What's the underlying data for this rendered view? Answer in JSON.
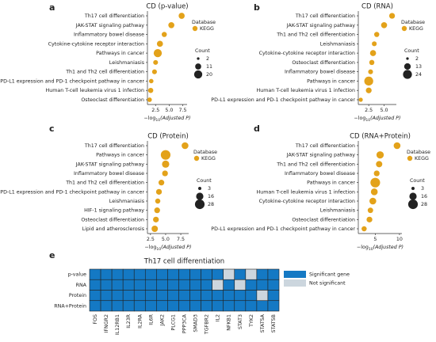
{
  "chart_data": [
    {
      "type": "dot",
      "panel": "a",
      "title": "CD (p-value)",
      "categories": [
        "Th17 cell differentiation",
        "JAK-STAT signaling pathway",
        "Inflammatory bowel disease",
        "Cytokine-cytokine receptor interaction",
        "Pathways in cancer",
        "Leishmaniasis",
        "Th1 and Th2 cell differentiation",
        "PD-L1 expression and PD-1 checkpoint pathway in cancer",
        "Human T-cell leukemia virus 1 infection",
        "Osteoclast differentiation"
      ],
      "series": [
        {
          "name": "KEGG",
          "color": "#e3a21a",
          "values": [
            7.3,
            5.4,
            4.1,
            3.3,
            2.9,
            2.5,
            2.3,
            1.7,
            1.6,
            1.4
          ],
          "sizes": [
            11,
            11,
            8,
            11,
            20,
            7,
            7,
            6,
            8,
            6
          ]
        }
      ],
      "legend_title": "Database",
      "size_legend": {
        "title": "Count",
        "values": [
          2,
          11,
          20
        ]
      },
      "xlim": [
        1,
        8.3
      ],
      "xticks": [
        2.5,
        {
          "value": 5,
          "label": "5.0"
        },
        7.5
      ],
      "xlabel": {
        "prefix": "−log",
        "sub": "10",
        "rest": "(Adjusted P)"
      }
    },
    {
      "type": "dot",
      "panel": "b",
      "title": "CD (RNA)",
      "categories": [
        "Th17 cell differentiation",
        "JAK-STAT signaling pathway",
        "Th1 and Th2 cell differentiation",
        "Leishmaniasis",
        "Cytokine-cytokine receptor interaction",
        "Osteoclast differentiation",
        "Inflammatory bowel disease",
        "Pathways in cancer",
        "Human T-cell leukemia virus 1 infection",
        "PD-L1 expression and PD-1 checkpoint pathway in cancer"
      ],
      "series": [
        {
          "name": "KEGG",
          "color": "#e3a21a",
          "values": [
            6.3,
            5.0,
            3.8,
            3.4,
            3.2,
            3.0,
            2.8,
            2.5,
            2.5,
            1.2
          ],
          "sizes": [
            10,
            11,
            8,
            7,
            11,
            8,
            7,
            24,
            10,
            5
          ]
        }
      ],
      "legend_title": "Database",
      "size_legend": {
        "title": "Count",
        "values": [
          2,
          13,
          24
        ]
      },
      "xlim": [
        0.8,
        7
      ],
      "xticks": [
        2.5,
        {
          "value": 5,
          "label": "5.0"
        }
      ],
      "xlabel": {
        "prefix": "−log",
        "sub": "10",
        "rest": "(Adjusted P)"
      }
    },
    {
      "type": "dot",
      "panel": "c",
      "title": "CD (Protein)",
      "categories": [
        "Th17 cell differentiation",
        "Pathways in cancer",
        "JAK-STAT signaling pathway",
        "Inflammatory bowel disease",
        "Th1 and Th2 cell differentiation",
        "PD-L1 expression and PD-1 checkpoint pathway in cancer",
        "Leishmaniasis",
        "HIF-1 signaling pathway",
        "Osteoclast differentiation",
        "Lipid and atherosclerosis"
      ],
      "series": [
        {
          "name": "KEGG",
          "color": "#e3a21a",
          "values": [
            8.2,
            5.0,
            5.0,
            4.9,
            4.3,
            3.9,
            3.7,
            3.6,
            3.4,
            3.2
          ],
          "sizes": [
            14,
            28,
            16,
            10,
            10,
            10,
            8,
            10,
            10,
            12
          ]
        }
      ],
      "legend_title": "Database",
      "size_legend": {
        "title": "Count",
        "values": [
          3,
          16,
          28
        ]
      },
      "xlim": [
        2,
        8.8
      ],
      "xticks": [
        2.5,
        {
          "value": 5,
          "label": "5.0"
        },
        7.5
      ],
      "xlabel": {
        "prefix": "−log",
        "sub": "10",
        "rest": "(Adjusted P)"
      }
    },
    {
      "type": "dot",
      "panel": "d",
      "title": "CD (RNA+Protein)",
      "categories": [
        "Th17 cell differentiation",
        "JAK-STAT signaling pathway",
        "Th1 and Th2 cell differentiation",
        "Inflammatory bowel disease",
        "Pathways in cancer",
        "Human T-cell leukemia virus 1 infection",
        "Cytokine-cytokine receptor interaction",
        "Leishmaniasis",
        "Osteoclast differentiation",
        "PD-L1 expression and PD-1 checkpoint pathway in cancer"
      ],
      "series": [
        {
          "name": "KEGG",
          "color": "#e3a21a",
          "values": [
            9.5,
            6.0,
            5.8,
            5.3,
            5.0,
            4.8,
            4.5,
            4.0,
            3.8,
            2.7
          ],
          "sizes": [
            14,
            16,
            12,
            10,
            28,
            14,
            14,
            9,
            10,
            8
          ]
        }
      ],
      "legend_title": "Database",
      "size_legend": {
        "title": "Count",
        "values": [
          3,
          16,
          28
        ]
      },
      "xlim": [
        1.5,
        10.5
      ],
      "xticks": [
        5,
        10
      ],
      "xlabel": {
        "prefix": "−log",
        "sub": "10",
        "rest": "(Adjusted P)"
      }
    },
    {
      "type": "heatmap",
      "panel": "e",
      "title": "Th17 cell differentiation",
      "x": [
        "FOS",
        "IFNGR2",
        "IL12RB1",
        "IL23R",
        "IL2RA",
        "IL6R",
        "JAK2",
        "PLCG1",
        "PPP3CA",
        "SMAD3",
        "TGFBR2",
        "IL2",
        "NFKB1",
        "STAT3",
        "TYK2",
        "STAT5A",
        "STAT5B"
      ],
      "y": [
        "p-value",
        "RNA",
        "Protein",
        "RNA+Protein"
      ],
      "values": [
        [
          1,
          1,
          1,
          1,
          1,
          1,
          1,
          1,
          1,
          1,
          1,
          1,
          0,
          1,
          0,
          1,
          1
        ],
        [
          1,
          1,
          1,
          1,
          1,
          1,
          1,
          1,
          1,
          1,
          1,
          0,
          1,
          0,
          1,
          1,
          1
        ],
        [
          1,
          1,
          1,
          1,
          1,
          1,
          1,
          1,
          1,
          1,
          1,
          1,
          1,
          1,
          1,
          0,
          1
        ],
        [
          1,
          1,
          1,
          1,
          1,
          1,
          1,
          1,
          1,
          1,
          1,
          1,
          1,
          1,
          1,
          1,
          1
        ]
      ],
      "scale": [
        {
          "value": 1,
          "label": "Significant gene",
          "color": "#1479c4"
        },
        {
          "value": 0,
          "label": "Not significant",
          "color": "#ccd6de"
        }
      ]
    }
  ]
}
